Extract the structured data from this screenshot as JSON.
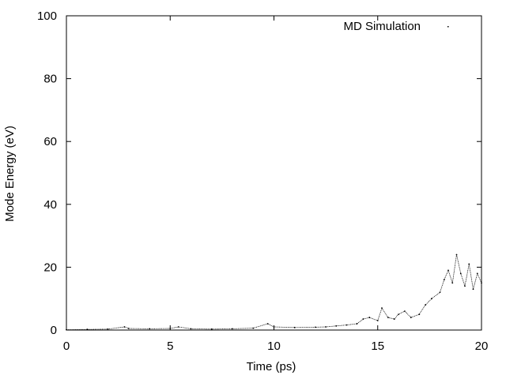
{
  "chart_data": {
    "type": "scatter",
    "title": "",
    "xlabel": "Time (ps)",
    "ylabel": "Mode Energy (eV)",
    "xlim": [
      0,
      20
    ],
    "ylim": [
      0,
      100
    ],
    "xticks": [
      0,
      5,
      10,
      15,
      20
    ],
    "yticks": [
      0,
      20,
      40,
      60,
      80,
      100
    ],
    "grid": false,
    "legend_position": "top-right",
    "series": [
      {
        "name": "MD Simulation",
        "color": "#000000",
        "style": "dots",
        "x": [
          0,
          1,
          2,
          2.8,
          3,
          4,
          5,
          5.4,
          6,
          7,
          8,
          9,
          9.7,
          10,
          11,
          12,
          12.5,
          13,
          13.5,
          14,
          14.3,
          14.6,
          15,
          15.2,
          15.5,
          15.8,
          16,
          16.3,
          16.6,
          17,
          17.3,
          17.6,
          18,
          18.2,
          18.4,
          18.6,
          18.8,
          19,
          19.2,
          19.4,
          19.6,
          19.8,
          20
        ],
        "y": [
          0.1,
          0.2,
          0.3,
          1.0,
          0.5,
          0.4,
          0.5,
          1.0,
          0.4,
          0.3,
          0.4,
          0.6,
          2.0,
          1.0,
          0.8,
          0.9,
          1.0,
          1.3,
          1.6,
          2.0,
          3.5,
          4.0,
          3.0,
          7.0,
          4.0,
          3.5,
          5.0,
          6.0,
          4.0,
          5.0,
          8.0,
          10.0,
          12.0,
          16.0,
          19.0,
          15.0,
          24.0,
          18.0,
          14.0,
          21.0,
          13.0,
          18.0,
          15.0
        ]
      }
    ]
  }
}
